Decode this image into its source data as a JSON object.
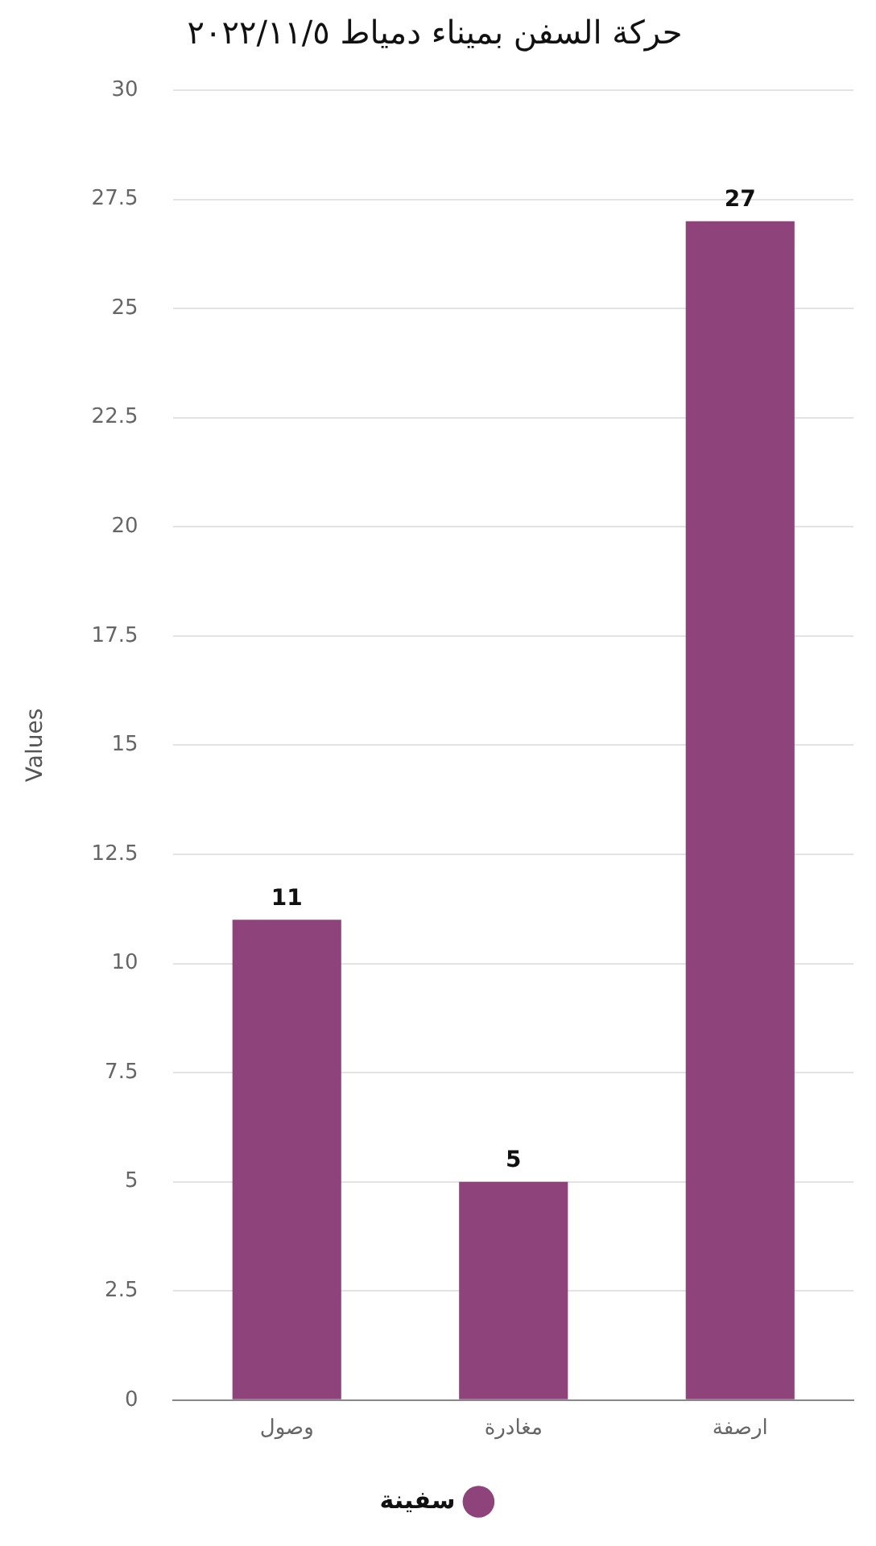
{
  "chart_data": {
    "type": "bar",
    "title": "حركة السفن بميناء دمياط ٢٠٢٢/١١/٥",
    "ylabel": "Values",
    "categories": [
      "وصول",
      "مغادرة",
      "ارصفة"
    ],
    "series": [
      {
        "name": "سفينة",
        "color": "#8e437b",
        "values": [
          11,
          5,
          27
        ]
      }
    ],
    "ylim": [
      0,
      30
    ],
    "yticks": [
      0,
      2.5,
      5,
      7.5,
      10,
      12.5,
      15,
      17.5,
      20,
      22.5,
      25,
      27.5,
      30
    ],
    "grid": "y",
    "legend": "bottom",
    "data_labels": true
  }
}
